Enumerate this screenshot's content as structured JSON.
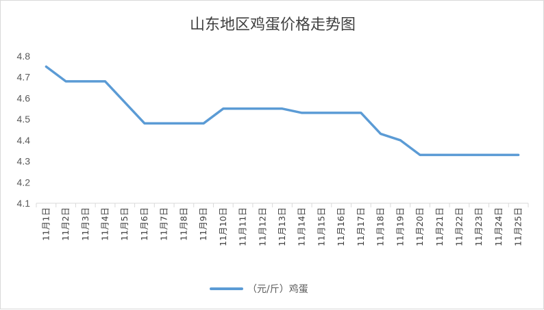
{
  "chart_data": {
    "type": "line",
    "title": "山东地区鸡蛋价格走势图",
    "categories": [
      "11月1日",
      "11月2日",
      "11月3日",
      "11月4日",
      "11月5日",
      "11月6日",
      "11月7日",
      "11月8日",
      "11月9日",
      "11月10日",
      "11月11日",
      "11月12日",
      "11月13日",
      "11月14日",
      "11月15日",
      "11月16日",
      "11月17日",
      "11月18日",
      "11月19日",
      "11月20日",
      "11月21日",
      "11月22日",
      "11月23日",
      "11月24日",
      "11月25日"
    ],
    "series": [
      {
        "name": "（元/斤）鸡蛋",
        "values": [
          4.75,
          4.68,
          4.68,
          4.68,
          4.58,
          4.48,
          4.48,
          4.48,
          4.48,
          4.55,
          4.55,
          4.55,
          4.55,
          4.53,
          4.53,
          4.53,
          4.53,
          4.43,
          4.4,
          4.33,
          4.33,
          4.33,
          4.33,
          4.33,
          4.33
        ],
        "color": "#5b9bd5"
      }
    ],
    "yticks": [
      "4.1",
      "4.2",
      "4.3",
      "4.4",
      "4.5",
      "4.6",
      "4.7",
      "4.8"
    ],
    "ylim": [
      4.1,
      4.8
    ],
    "grid": false,
    "legend": "bottom",
    "axis_color": "#d9d9d9"
  }
}
